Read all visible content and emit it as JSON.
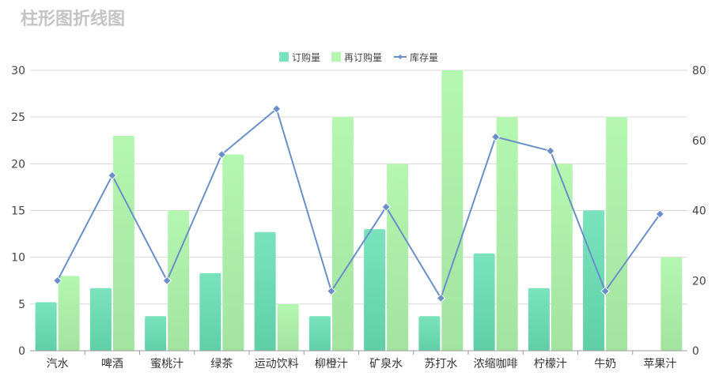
{
  "title": "柱形图折线图",
  "colors": {
    "order": "#7ae3bd",
    "order_dark": "#5fcfa8",
    "reorder": "#b4f7b0",
    "reorder_dark": "#a2e3a0",
    "inventory": "#6a8fc8",
    "grid": "#d8d8d8",
    "title": "#c4c4c4"
  },
  "chart_data": {
    "type": "bar",
    "categories": [
      "汽水",
      "啤酒",
      "蜜桃汁",
      "绿茶",
      "运动饮料",
      "柳橙汁",
      "矿泉水",
      "苏打水",
      "浓缩咖啡",
      "柠檬汁",
      "牛奶",
      "苹果汁"
    ],
    "series": [
      {
        "name": "订购量",
        "type": "bar",
        "axis": "left",
        "values": [
          5.2,
          6.7,
          3.7,
          8.3,
          12.7,
          3.7,
          13.0,
          3.7,
          10.4,
          6.7,
          15.0,
          0
        ]
      },
      {
        "name": "再订购量",
        "type": "bar",
        "axis": "left",
        "values": [
          8,
          23,
          15,
          21,
          5,
          25,
          20,
          30,
          25,
          20,
          25,
          10
        ]
      },
      {
        "name": "库存量",
        "type": "line",
        "axis": "right",
        "marker": "diamond",
        "values": [
          20,
          50,
          20,
          56,
          69,
          17,
          41,
          15,
          61,
          57,
          17,
          39
        ]
      }
    ],
    "y_left": {
      "min": 0,
      "max": 30,
      "ticks": [
        0,
        5,
        10,
        15,
        20,
        25,
        30
      ]
    },
    "y_right": {
      "min": 0,
      "max": 80,
      "ticks": [
        0,
        20,
        40,
        60,
        80
      ]
    },
    "legend": {
      "position": "top-center",
      "items": [
        "订购量",
        "再订购量",
        "库存量"
      ]
    },
    "grid": true
  }
}
